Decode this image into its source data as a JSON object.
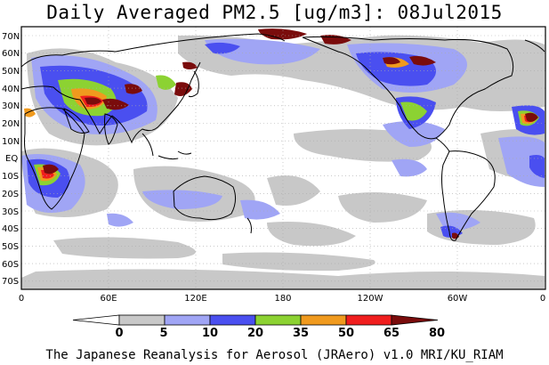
{
  "title": "Daily Averaged PM2.5 [ug/m3]: 08Jul2015",
  "footer": "The Japanese Reanalysis for Aerosol (JRAero) v1.0 MRI/KU_RIAM",
  "lat_ticks": [
    "70N",
    "60N",
    "50N",
    "40N",
    "30N",
    "20N",
    "10N",
    "EQ",
    "10S",
    "20S",
    "30S",
    "40S",
    "50S",
    "60S",
    "70S"
  ],
  "lon_ticks": [
    "0",
    "60E",
    "120E",
    "180",
    "120W",
    "60W",
    "0"
  ],
  "colorbar": {
    "labels": [
      "0",
      "5",
      "10",
      "20",
      "35",
      "50",
      "65",
      "80"
    ],
    "colors": [
      "#ffffff",
      "#c8c8c8",
      "#a0a5f5",
      "#4a4ff0",
      "#8cd232",
      "#f09a1e",
      "#f01e1e",
      "#7a0c0c"
    ]
  },
  "colors": {
    "land_outline": "#000000",
    "grid": "#999999"
  }
}
